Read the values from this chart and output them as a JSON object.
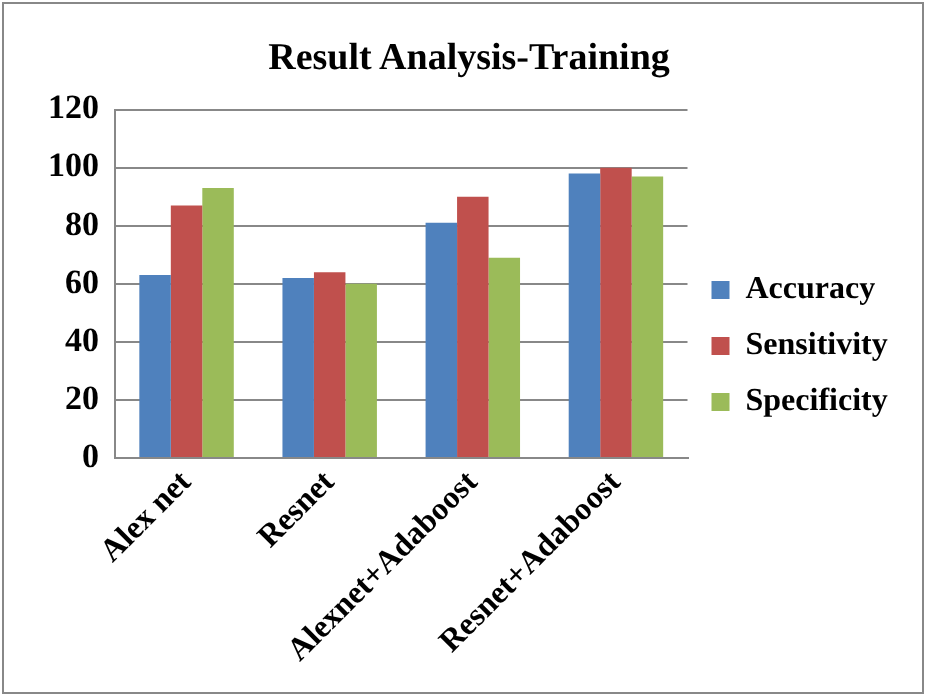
{
  "chart_data": {
    "type": "bar",
    "title": "Result Analysis-Training",
    "categories": [
      "Alex net",
      "Resnet",
      "Alexnet+Adaboost",
      "Resnet+Adaboost"
    ],
    "series": [
      {
        "name": "Accuracy",
        "color": "#4f81bd",
        "values": [
          63,
          62,
          81,
          98
        ]
      },
      {
        "name": "Sensitivity",
        "color": "#c0504d",
        "values": [
          87,
          64,
          90,
          100
        ]
      },
      {
        "name": "Specificity",
        "color": "#9bbb59",
        "values": [
          93,
          60,
          69,
          97
        ]
      }
    ],
    "ylim": [
      0,
      120
    ],
    "yticks": [
      0,
      20,
      40,
      60,
      80,
      100,
      120
    ],
    "grid": "y",
    "legend": "right"
  }
}
